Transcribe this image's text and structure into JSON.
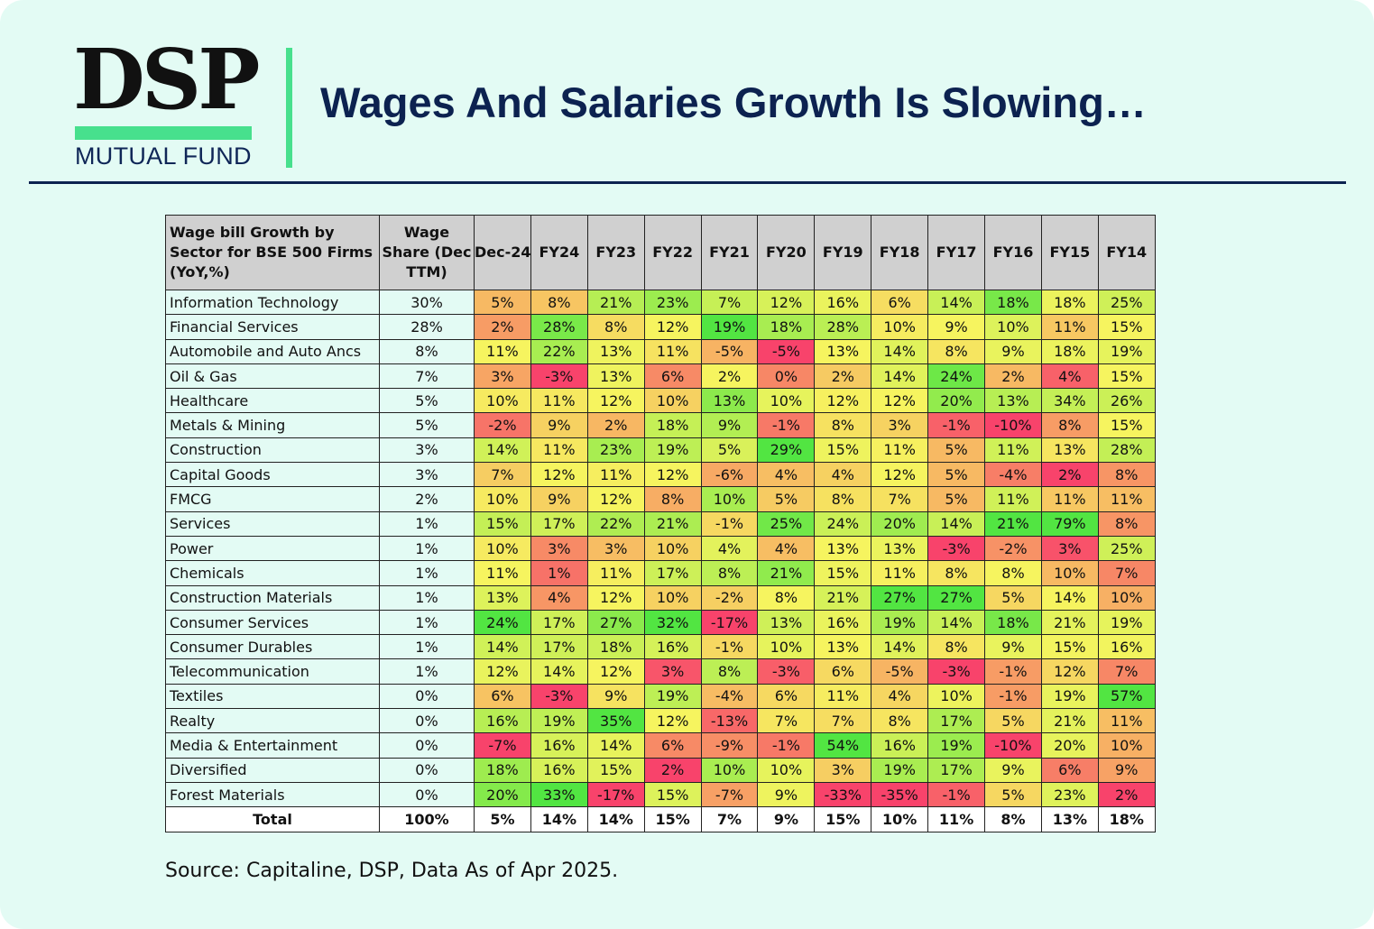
{
  "header": {
    "logo_text": "DSP",
    "logo_subtitle": "MUTUAL FUND",
    "title": "Wages And Salaries Growth Is Slowing…"
  },
  "colors": {
    "background": "#e3fbf4",
    "accent_green": "#47e08d",
    "navy": "#0c2250",
    "scale_low": "#f8436b",
    "scale_mid": "#f6f45f",
    "scale_high": "#52e542"
  },
  "table": {
    "header_sector": "Wage bill Growth by Sector for BSE 500 Firms (YoY,%)",
    "header_share": "Wage Share (Dec TTM)",
    "periods": [
      "Dec-24",
      "FY24",
      "FY23",
      "FY22",
      "FY21",
      "FY20",
      "FY19",
      "FY18",
      "FY17",
      "FY16",
      "FY15",
      "FY14"
    ],
    "rows": [
      {
        "sector": "Information Technology",
        "share": "30%",
        "values": [
          5,
          8,
          21,
          23,
          7,
          12,
          16,
          6,
          14,
          18,
          18,
          25
        ]
      },
      {
        "sector": "Financial Services",
        "share": "28%",
        "values": [
          2,
          28,
          8,
          12,
          19,
          18,
          28,
          10,
          9,
          10,
          11,
          15
        ]
      },
      {
        "sector": "Automobile and Auto Ancs",
        "share": "8%",
        "values": [
          11,
          22,
          13,
          11,
          -5,
          -5,
          13,
          14,
          8,
          9,
          18,
          19
        ]
      },
      {
        "sector": "Oil & Gas",
        "share": "7%",
        "values": [
          3,
          -3,
          13,
          6,
          2,
          0,
          2,
          14,
          24,
          2,
          4,
          15
        ]
      },
      {
        "sector": "Healthcare",
        "share": "5%",
        "values": [
          10,
          11,
          12,
          10,
          13,
          10,
          12,
          12,
          20,
          13,
          34,
          26
        ]
      },
      {
        "sector": "Metals & Mining",
        "share": "5%",
        "values": [
          -2,
          9,
          2,
          18,
          9,
          -1,
          8,
          3,
          -1,
          -10,
          8,
          15
        ]
      },
      {
        "sector": "Construction",
        "share": "3%",
        "values": [
          14,
          11,
          23,
          19,
          5,
          29,
          15,
          11,
          5,
          11,
          13,
          28
        ]
      },
      {
        "sector": "Capital Goods",
        "share": "3%",
        "values": [
          7,
          12,
          11,
          12,
          -6,
          4,
          4,
          12,
          5,
          -4,
          2,
          8
        ]
      },
      {
        "sector": "FMCG",
        "share": "2%",
        "values": [
          10,
          9,
          12,
          8,
          10,
          5,
          8,
          7,
          5,
          11,
          11,
          11
        ]
      },
      {
        "sector": "Services",
        "share": "1%",
        "values": [
          15,
          17,
          22,
          21,
          -1,
          25,
          24,
          20,
          14,
          21,
          79,
          8
        ]
      },
      {
        "sector": "Power",
        "share": "1%",
        "values": [
          10,
          3,
          3,
          10,
          4,
          4,
          13,
          13,
          -3,
          -2,
          3,
          25
        ]
      },
      {
        "sector": "Chemicals",
        "share": "1%",
        "values": [
          11,
          1,
          11,
          17,
          8,
          21,
          15,
          11,
          8,
          8,
          10,
          7
        ]
      },
      {
        "sector": "Construction Materials",
        "share": "1%",
        "values": [
          13,
          4,
          12,
          10,
          -2,
          8,
          21,
          27,
          27,
          5,
          14,
          10
        ]
      },
      {
        "sector": "Consumer Services",
        "share": "1%",
        "values": [
          24,
          17,
          27,
          32,
          -17,
          13,
          16,
          19,
          14,
          18,
          21,
          19
        ]
      },
      {
        "sector": "Consumer Durables",
        "share": "1%",
        "values": [
          14,
          17,
          18,
          16,
          -1,
          10,
          13,
          14,
          8,
          9,
          15,
          16
        ]
      },
      {
        "sector": "Telecommunication",
        "share": "1%",
        "values": [
          12,
          14,
          12,
          3,
          8,
          -3,
          6,
          -5,
          -3,
          -1,
          12,
          7
        ]
      },
      {
        "sector": "Textiles",
        "share": "0%",
        "values": [
          6,
          -3,
          9,
          19,
          -4,
          6,
          11,
          4,
          10,
          -1,
          19,
          57
        ]
      },
      {
        "sector": "Realty",
        "share": "0%",
        "values": [
          16,
          19,
          35,
          12,
          -13,
          7,
          7,
          8,
          17,
          5,
          21,
          11
        ]
      },
      {
        "sector": "Media & Entertainment",
        "share": "0%",
        "values": [
          -7,
          16,
          14,
          6,
          -9,
          -1,
          54,
          16,
          19,
          -10,
          20,
          10
        ]
      },
      {
        "sector": "Diversified",
        "share": "0%",
        "values": [
          18,
          16,
          15,
          2,
          10,
          10,
          3,
          19,
          17,
          9,
          6,
          9
        ]
      },
      {
        "sector": "Forest Materials",
        "share": "0%",
        "values": [
          20,
          33,
          -17,
          15,
          -7,
          9,
          -33,
          -35,
          -1,
          5,
          23,
          2
        ]
      }
    ],
    "total": {
      "label": "Total",
      "share": "100%",
      "values": [
        "5%",
        "14%",
        "14%",
        "15%",
        "7%",
        "9%",
        "15%",
        "10%",
        "11%",
        "8%",
        "13%",
        "18%"
      ]
    }
  },
  "footer": {
    "source": "Source: Capitaline, DSP, Data As of Apr 2025."
  }
}
